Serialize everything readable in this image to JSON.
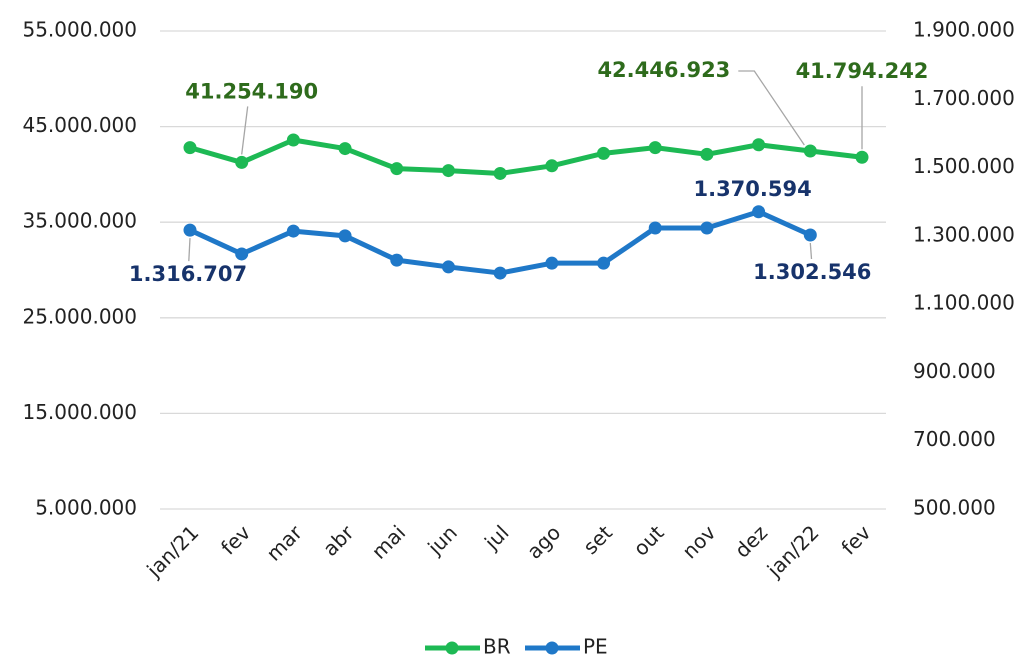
{
  "chart_data": {
    "type": "line",
    "categories": [
      "jan/21",
      "fev",
      "mar",
      "abr",
      "mai",
      "jun",
      "jul",
      "ago",
      "set",
      "out",
      "nov",
      "dez",
      "jan/22",
      "fev"
    ],
    "series": [
      {
        "name": "BR",
        "color": "#1db954",
        "label_color": "#2e6b1c",
        "values": [
          42800000,
          41254190,
          43600000,
          42700000,
          40600000,
          40400000,
          40100000,
          40900000,
          42200000,
          42800000,
          42100000,
          43100000,
          42446923,
          41794242
        ],
        "value_labels": [
          null,
          "41.254.190",
          null,
          null,
          null,
          null,
          null,
          null,
          null,
          null,
          null,
          null,
          "42.446.923",
          "41.794.242"
        ]
      },
      {
        "name": "PE",
        "color": "#1f78c8",
        "label_color": "#17336b",
        "axis": "y2",
        "values": [
          1316707,
          1247000,
          1314000,
          1300000,
          1229000,
          1209000,
          1191000,
          1220000,
          1220000,
          1323000,
          1323000,
          1370594,
          1302546,
          null
        ],
        "value_labels": [
          "1.316.707",
          null,
          null,
          null,
          null,
          null,
          null,
          null,
          null,
          null,
          null,
          "1.370.594",
          "1.302.546",
          null
        ]
      }
    ],
    "ylim": [
      5000000,
      55000000
    ],
    "yticks": [
      {
        "value": 5000000,
        "label": "5.000.000"
      },
      {
        "value": 15000000,
        "label": "15.000.000"
      },
      {
        "value": 25000000,
        "label": "25.000.000"
      },
      {
        "value": 35000000,
        "label": "35.000.000"
      },
      {
        "value": 45000000,
        "label": "45.000.000"
      },
      {
        "value": 55000000,
        "label": "55.000.000"
      }
    ],
    "y2lim": [
      500000,
      1900000
    ],
    "y2ticks": [
      {
        "value": 500000,
        "label": "500.000"
      },
      {
        "value": 700000,
        "label": "700.000"
      },
      {
        "value": 900000,
        "label": "900.000"
      },
      {
        "value": 1100000,
        "label": "1.100.000"
      },
      {
        "value": 1300000,
        "label": "1.300.000"
      },
      {
        "value": 1500000,
        "label": "1.500.000"
      },
      {
        "value": 1700000,
        "label": "1.700.000"
      },
      {
        "value": 1900000,
        "label": "1.900.000"
      }
    ],
    "grid": true,
    "legend": "bottom"
  }
}
